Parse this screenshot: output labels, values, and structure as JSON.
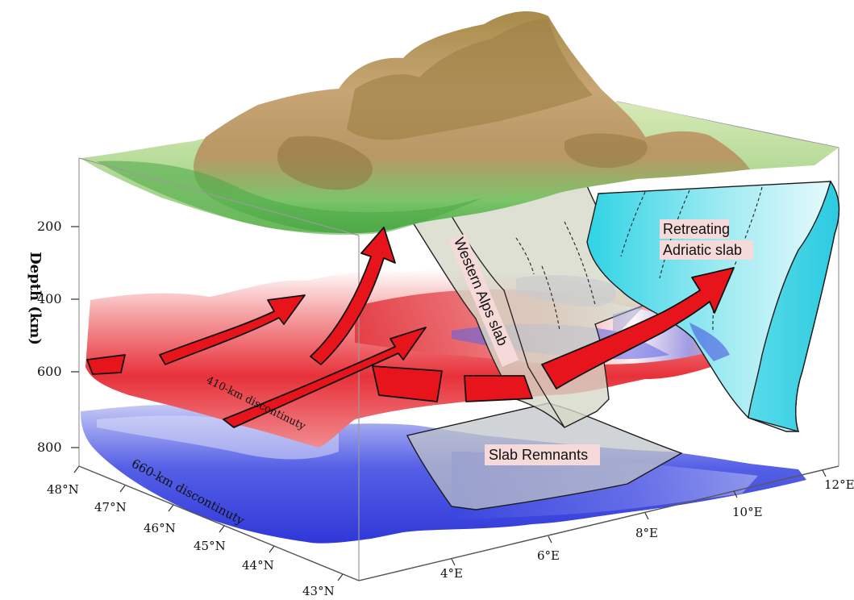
{
  "axis": {
    "depth_label": "Depth (km)",
    "depth_ticks": [
      "200",
      "400",
      "600",
      "800"
    ],
    "lat_ticks": [
      "48°N",
      "47°N",
      "46°N",
      "45°N",
      "44°N",
      "43°N"
    ],
    "lon_ticks": [
      "4°E",
      "6°E",
      "8°E",
      "10°E",
      "12°E"
    ]
  },
  "labels": {
    "discontinuity_410": "410-km discontinuty",
    "discontinuity_660": "660-km discontinuty",
    "western_alps_slab": "Western Alps slab",
    "retreating_line1": "Retreating",
    "retreating_line2": "Adriatic slab",
    "slab_remnants": "Slab Remnants"
  },
  "colors": {
    "arrow_red": "#e8141b",
    "positive_anomaly": "#e8313a",
    "negative_anomaly": "#3a46e0",
    "adriatic_slab": "#3fd6e6",
    "alps_slab": "#c9ccb8",
    "label_box": "#f6d9d9"
  }
}
